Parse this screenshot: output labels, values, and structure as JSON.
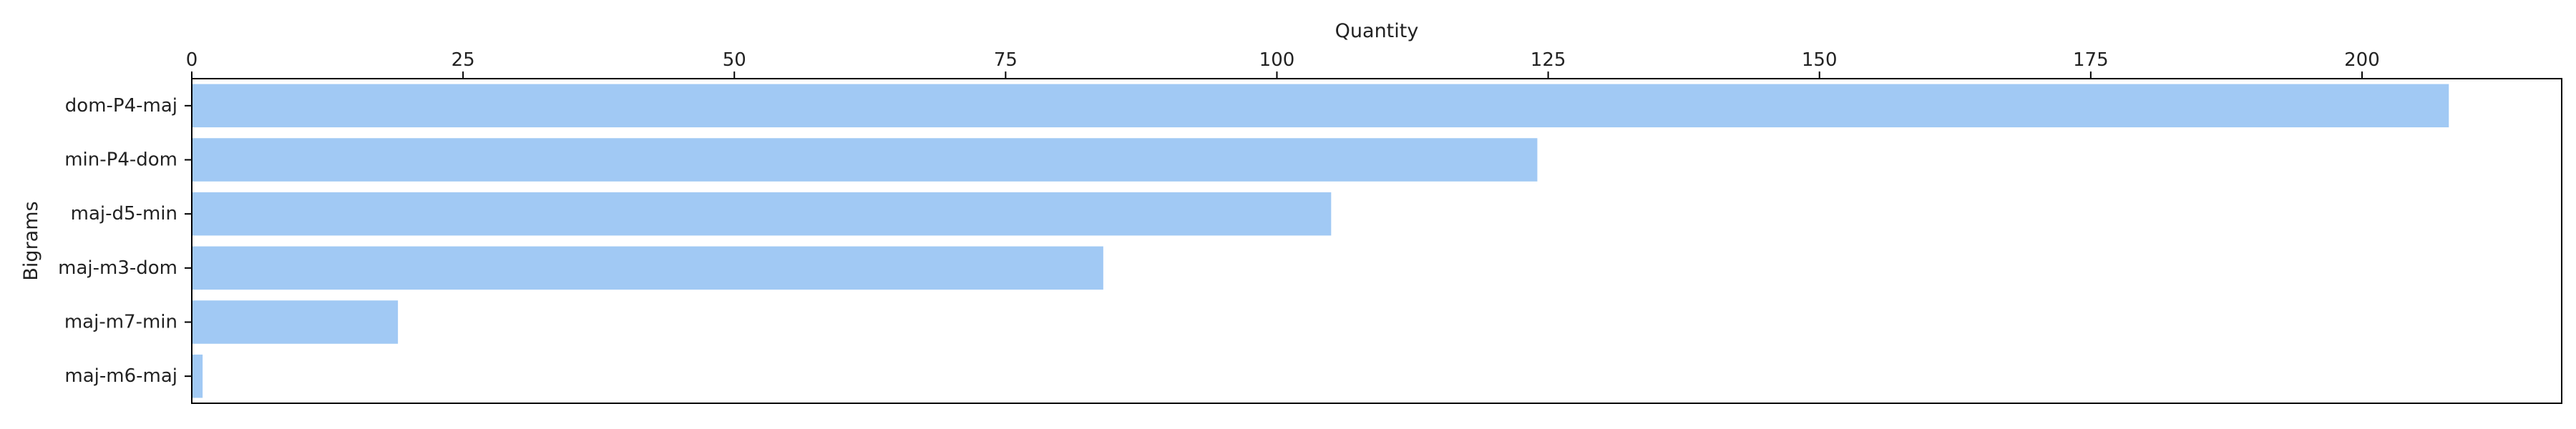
{
  "chart_data": {
    "type": "bar",
    "orientation": "horizontal",
    "title": "",
    "xlabel": "Quantity",
    "ylabel": "Bigrams",
    "x_axis_position": "top",
    "categories": [
      "dom-P4-maj",
      "min-P4-dom",
      "maj-d5-min",
      "maj-m3-dom",
      "maj-m7-min",
      "maj-m6-maj"
    ],
    "values": [
      208,
      124,
      105,
      84,
      19,
      1
    ],
    "xlim": [
      0,
      218.4
    ],
    "xticks": [
      0,
      25,
      50,
      75,
      100,
      125,
      150,
      175,
      200
    ],
    "xtick_labels": [
      "0",
      "25",
      "50",
      "75",
      "100",
      "125",
      "150",
      "175",
      "200"
    ],
    "grid": false,
    "legend": "none",
    "bar_color": "#a1c9f4"
  }
}
